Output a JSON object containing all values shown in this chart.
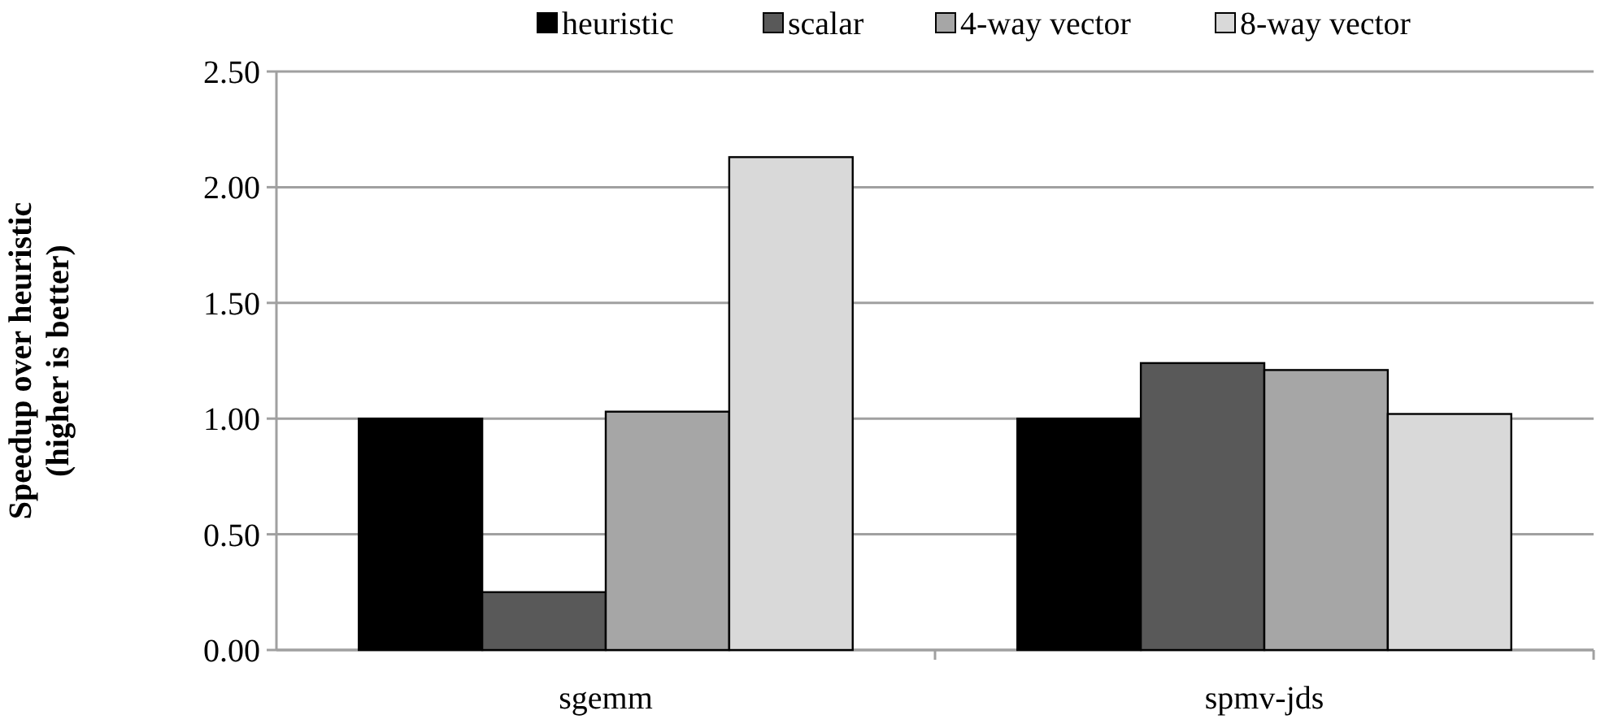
{
  "chart_data": {
    "type": "bar",
    "ylabel": "Speedup over heuristic\n(higher is better)",
    "categories": [
      "sgemm",
      "spmv-jds"
    ],
    "series": [
      {
        "name": "heuristic",
        "color": "#000000",
        "values": [
          1.0,
          1.0
        ]
      },
      {
        "name": "scalar",
        "color": "#595959",
        "values": [
          0.25,
          1.24
        ]
      },
      {
        "name": "4-way vector",
        "color": "#a6a6a6",
        "values": [
          1.03,
          1.21
        ]
      },
      {
        "name": "8-way vector",
        "color": "#d9d9d9",
        "values": [
          2.13,
          1.02
        ]
      }
    ],
    "ylim": [
      0,
      2.5
    ],
    "yticks": [
      {
        "value": 0,
        "label": "0.00"
      },
      {
        "value": 0.5,
        "label": "0.50"
      },
      {
        "value": 1,
        "label": "1.00"
      },
      {
        "value": 1.5,
        "label": "1.50"
      },
      {
        "value": 2,
        "label": "2.00"
      },
      {
        "value": 2.5,
        "label": "2.50"
      }
    ],
    "grid": "y",
    "legend": "top"
  }
}
